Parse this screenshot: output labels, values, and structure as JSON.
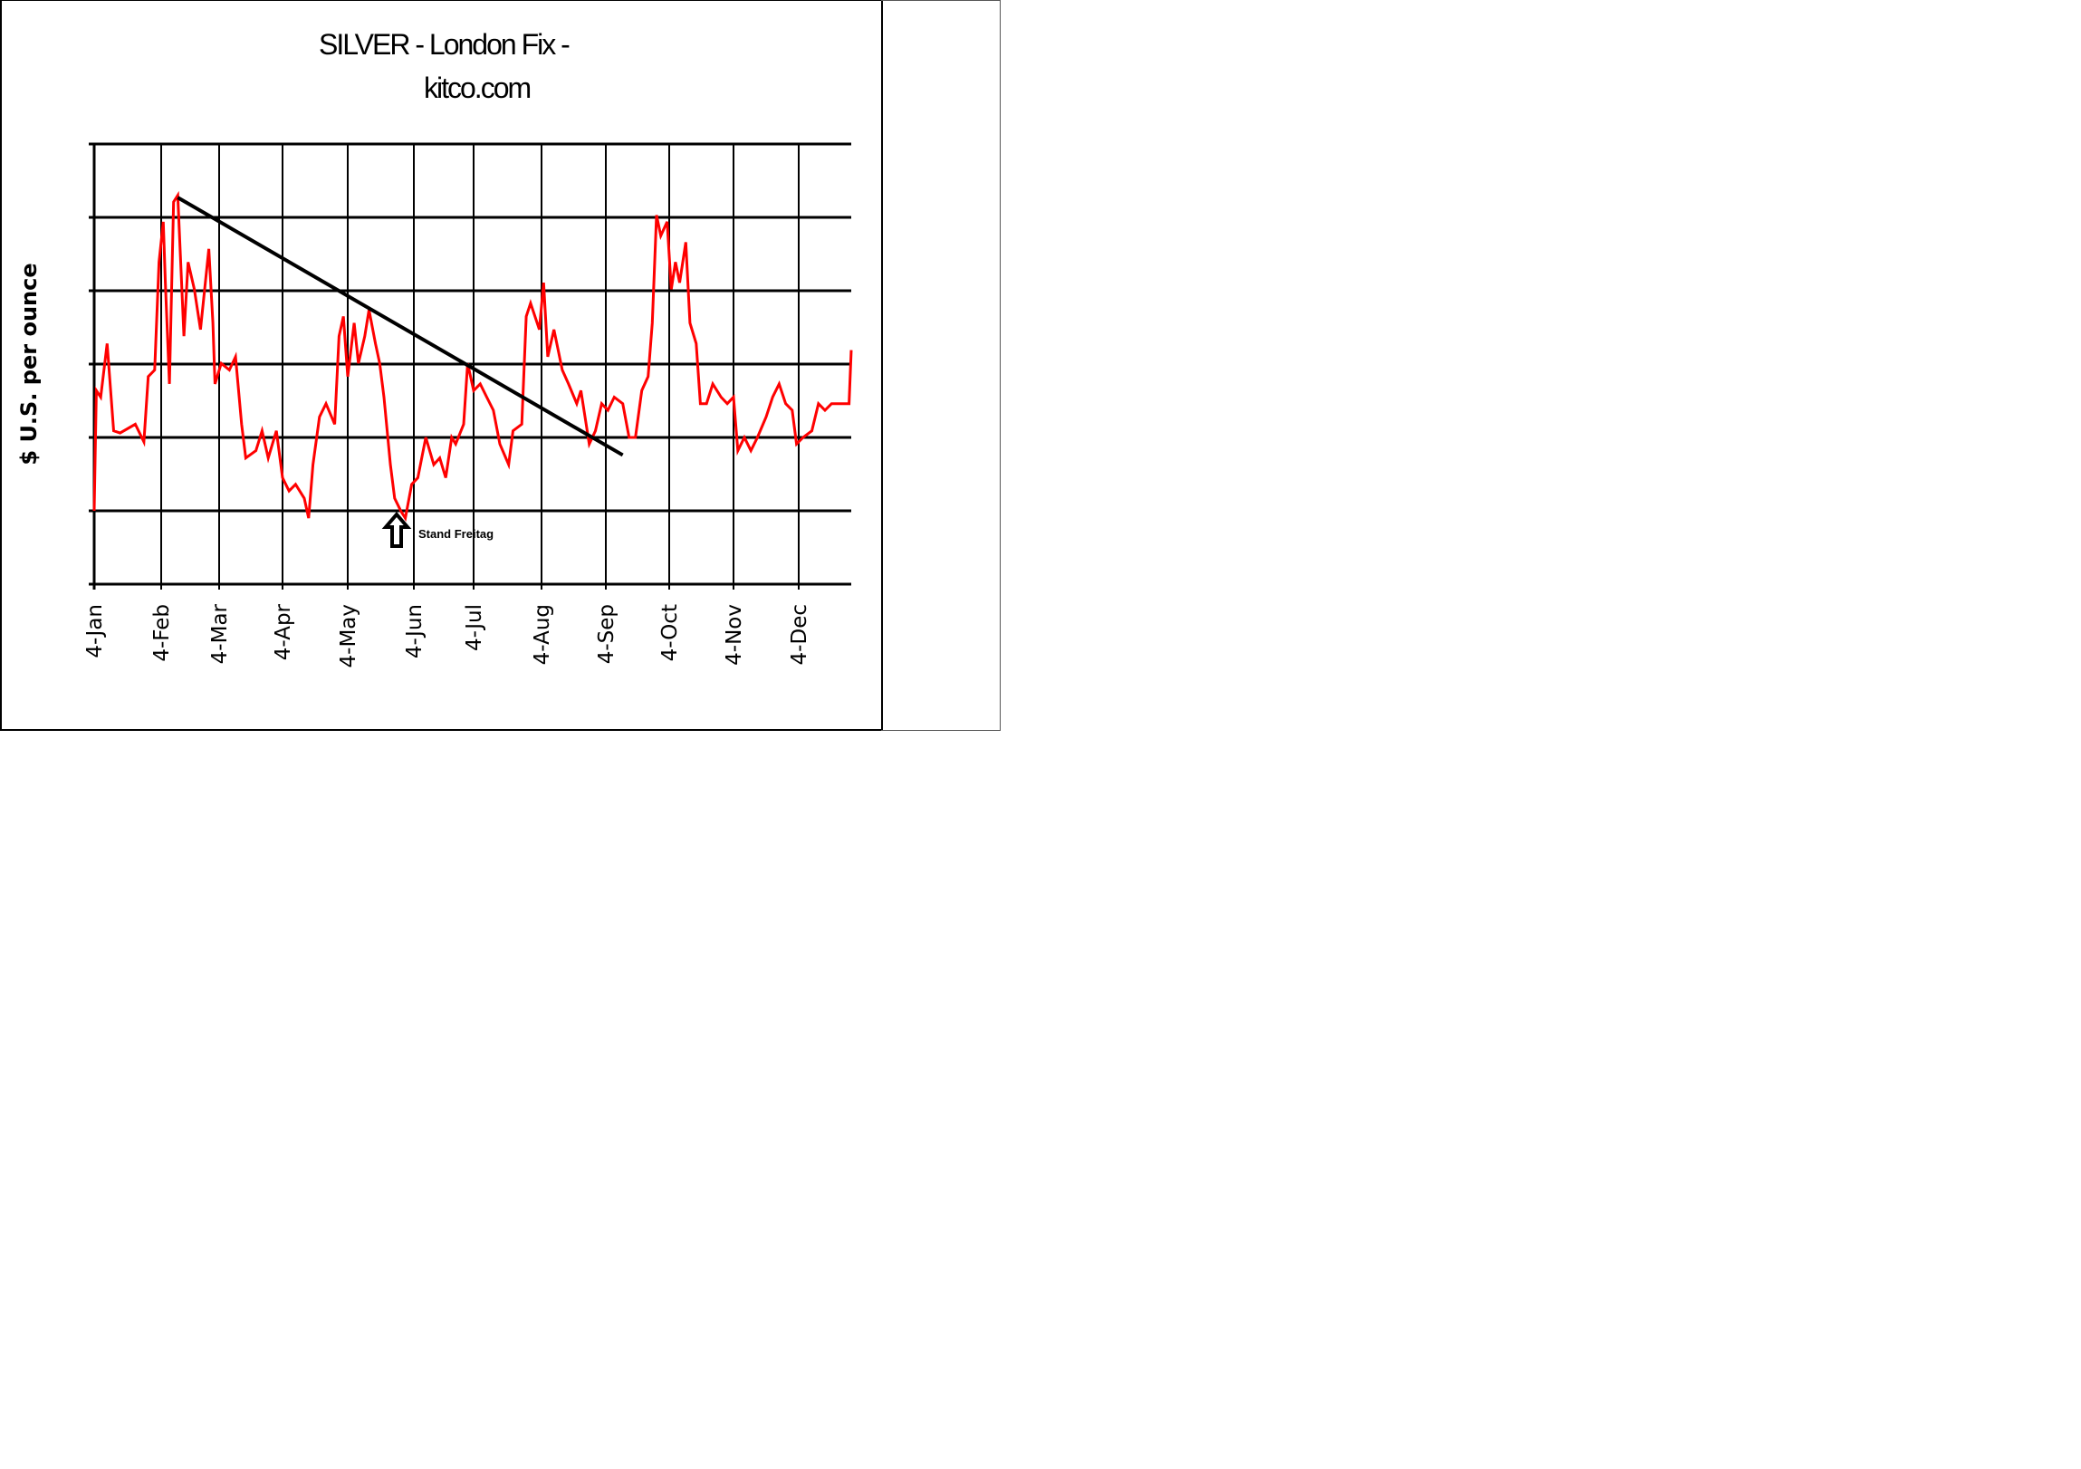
{
  "chart_data": {
    "type": "line",
    "title": "SILVER  -  London Fix  -",
    "subtitle": "kitco.com",
    "ylabel": "$ U.S. per ounce",
    "xlabel": "",
    "y_tick_labels": "none shown",
    "ylim": [
      0,
      6
    ],
    "grid": true,
    "legend": "none",
    "categories": [
      "4-Jan",
      "4-Feb",
      "4-Mar",
      "4-Apr",
      "4-May",
      "4-Jun",
      "4-Jul",
      "4-Aug",
      "4-Sep",
      "4-Oct",
      "4-Nov",
      "4-Dec"
    ],
    "series": [
      {
        "color": "#ff0000",
        "points": [
          [
            "01-04",
            1.0
          ],
          [
            "01-05",
            2.64
          ],
          [
            "01-07",
            2.55
          ],
          [
            "01-10",
            3.28
          ],
          [
            "01-13",
            2.09
          ],
          [
            "01-16",
            2.06
          ],
          [
            "01-23",
            2.18
          ],
          [
            "01-27",
            1.94
          ],
          [
            "01-29",
            2.83
          ],
          [
            "02-01",
            2.92
          ],
          [
            "02-03",
            4.39
          ],
          [
            "02-05",
            4.94
          ],
          [
            "02-06",
            4.11
          ],
          [
            "02-08",
            2.73
          ],
          [
            "02-10",
            5.21
          ],
          [
            "02-12",
            5.3
          ],
          [
            "02-15",
            3.38
          ],
          [
            "02-17",
            4.39
          ],
          [
            "02-20",
            4.02
          ],
          [
            "02-23",
            3.47
          ],
          [
            "02-27",
            4.57
          ],
          [
            "03-01",
            3.56
          ],
          [
            "03-02",
            2.73
          ],
          [
            "03-05",
            3.01
          ],
          [
            "03-09",
            2.92
          ],
          [
            "03-12",
            3.1
          ],
          [
            "03-15",
            2.18
          ],
          [
            "03-17",
            1.72
          ],
          [
            "03-22",
            1.82
          ],
          [
            "03-25",
            2.09
          ],
          [
            "03-28",
            1.72
          ],
          [
            "04-01",
            2.09
          ],
          [
            "04-04",
            1.45
          ],
          [
            "04-07",
            1.27
          ],
          [
            "04-10",
            1.36
          ],
          [
            "04-14",
            1.17
          ],
          [
            "04-16",
            0.9
          ],
          [
            "04-18",
            1.63
          ],
          [
            "04-21",
            2.28
          ],
          [
            "04-24",
            2.46
          ],
          [
            "04-28",
            2.18
          ],
          [
            "04-30",
            3.38
          ],
          [
            "05-02",
            3.65
          ],
          [
            "05-04",
            2.83
          ],
          [
            "05-07",
            3.56
          ],
          [
            "05-09",
            3.01
          ],
          [
            "05-12",
            3.38
          ],
          [
            "05-14",
            3.74
          ],
          [
            "05-17",
            3.28
          ],
          [
            "05-19",
            3.01
          ],
          [
            "05-21",
            2.55
          ],
          [
            "05-24",
            1.63
          ],
          [
            "05-26",
            1.17
          ],
          [
            "05-29",
            0.99
          ],
          [
            "05-31",
            0.9
          ],
          [
            "06-03",
            1.36
          ],
          [
            "06-06",
            1.45
          ],
          [
            "06-10",
            2.0
          ],
          [
            "06-14",
            1.63
          ],
          [
            "06-17",
            1.72
          ],
          [
            "06-20",
            1.45
          ],
          [
            "06-23",
            2.0
          ],
          [
            "06-25",
            1.91
          ],
          [
            "06-29",
            2.18
          ],
          [
            "07-01",
            3.01
          ],
          [
            "07-04",
            2.64
          ],
          [
            "07-07",
            2.73
          ],
          [
            "07-10",
            2.55
          ],
          [
            "07-13",
            2.37
          ],
          [
            "07-16",
            1.91
          ],
          [
            "07-20",
            1.63
          ],
          [
            "07-22",
            2.09
          ],
          [
            "07-26",
            2.18
          ],
          [
            "07-28",
            3.65
          ],
          [
            "07-30",
            3.83
          ],
          [
            "08-03",
            3.47
          ],
          [
            "08-05",
            4.11
          ],
          [
            "08-07",
            3.1
          ],
          [
            "08-10",
            3.47
          ],
          [
            "08-14",
            2.92
          ],
          [
            "08-17",
            2.73
          ],
          [
            "08-21",
            2.46
          ],
          [
            "08-23",
            2.64
          ],
          [
            "08-27",
            1.91
          ],
          [
            "08-30",
            2.09
          ],
          [
            "09-02",
            2.46
          ],
          [
            "09-05",
            2.37
          ],
          [
            "09-08",
            2.55
          ],
          [
            "09-12",
            2.46
          ],
          [
            "09-15",
            2.0
          ],
          [
            "09-18",
            2.0
          ],
          [
            "09-21",
            2.64
          ],
          [
            "09-24",
            2.83
          ],
          [
            "09-26",
            3.56
          ],
          [
            "09-28",
            5.03
          ],
          [
            "09-30",
            4.75
          ],
          [
            "10-03",
            4.94
          ],
          [
            "10-05",
            4.02
          ],
          [
            "10-07",
            4.39
          ],
          [
            "10-09",
            4.11
          ],
          [
            "10-12",
            4.66
          ],
          [
            "10-14",
            3.56
          ],
          [
            "10-17",
            3.28
          ],
          [
            "10-19",
            2.46
          ],
          [
            "10-22",
            2.46
          ],
          [
            "10-25",
            2.73
          ],
          [
            "10-29",
            2.55
          ],
          [
            "11-01",
            2.46
          ],
          [
            "11-04",
            2.55
          ],
          [
            "11-06",
            1.82
          ],
          [
            "11-09",
            2.0
          ],
          [
            "11-12",
            1.82
          ],
          [
            "11-15",
            2.0
          ],
          [
            "11-19",
            2.28
          ],
          [
            "11-22",
            2.55
          ],
          [
            "11-25",
            2.73
          ],
          [
            "11-28",
            2.46
          ],
          [
            "12-01",
            2.37
          ],
          [
            "12-03",
            1.91
          ],
          [
            "12-06",
            2.0
          ],
          [
            "12-10",
            2.09
          ],
          [
            "12-13",
            2.46
          ],
          [
            "12-16",
            2.37
          ],
          [
            "12-19",
            2.46
          ],
          [
            "12-22",
            2.46
          ],
          [
            "12-27",
            2.46
          ],
          [
            "12-28",
            3.19
          ]
        ]
      }
    ],
    "trendline": {
      "color": "#000000",
      "from": [
        "02-12",
        5.27
      ],
      "to": [
        "09-12",
        1.76
      ]
    },
    "annotation": {
      "text": "Stand Freitag",
      "icon": "up-arrow-icon",
      "at": "05-30"
    }
  }
}
